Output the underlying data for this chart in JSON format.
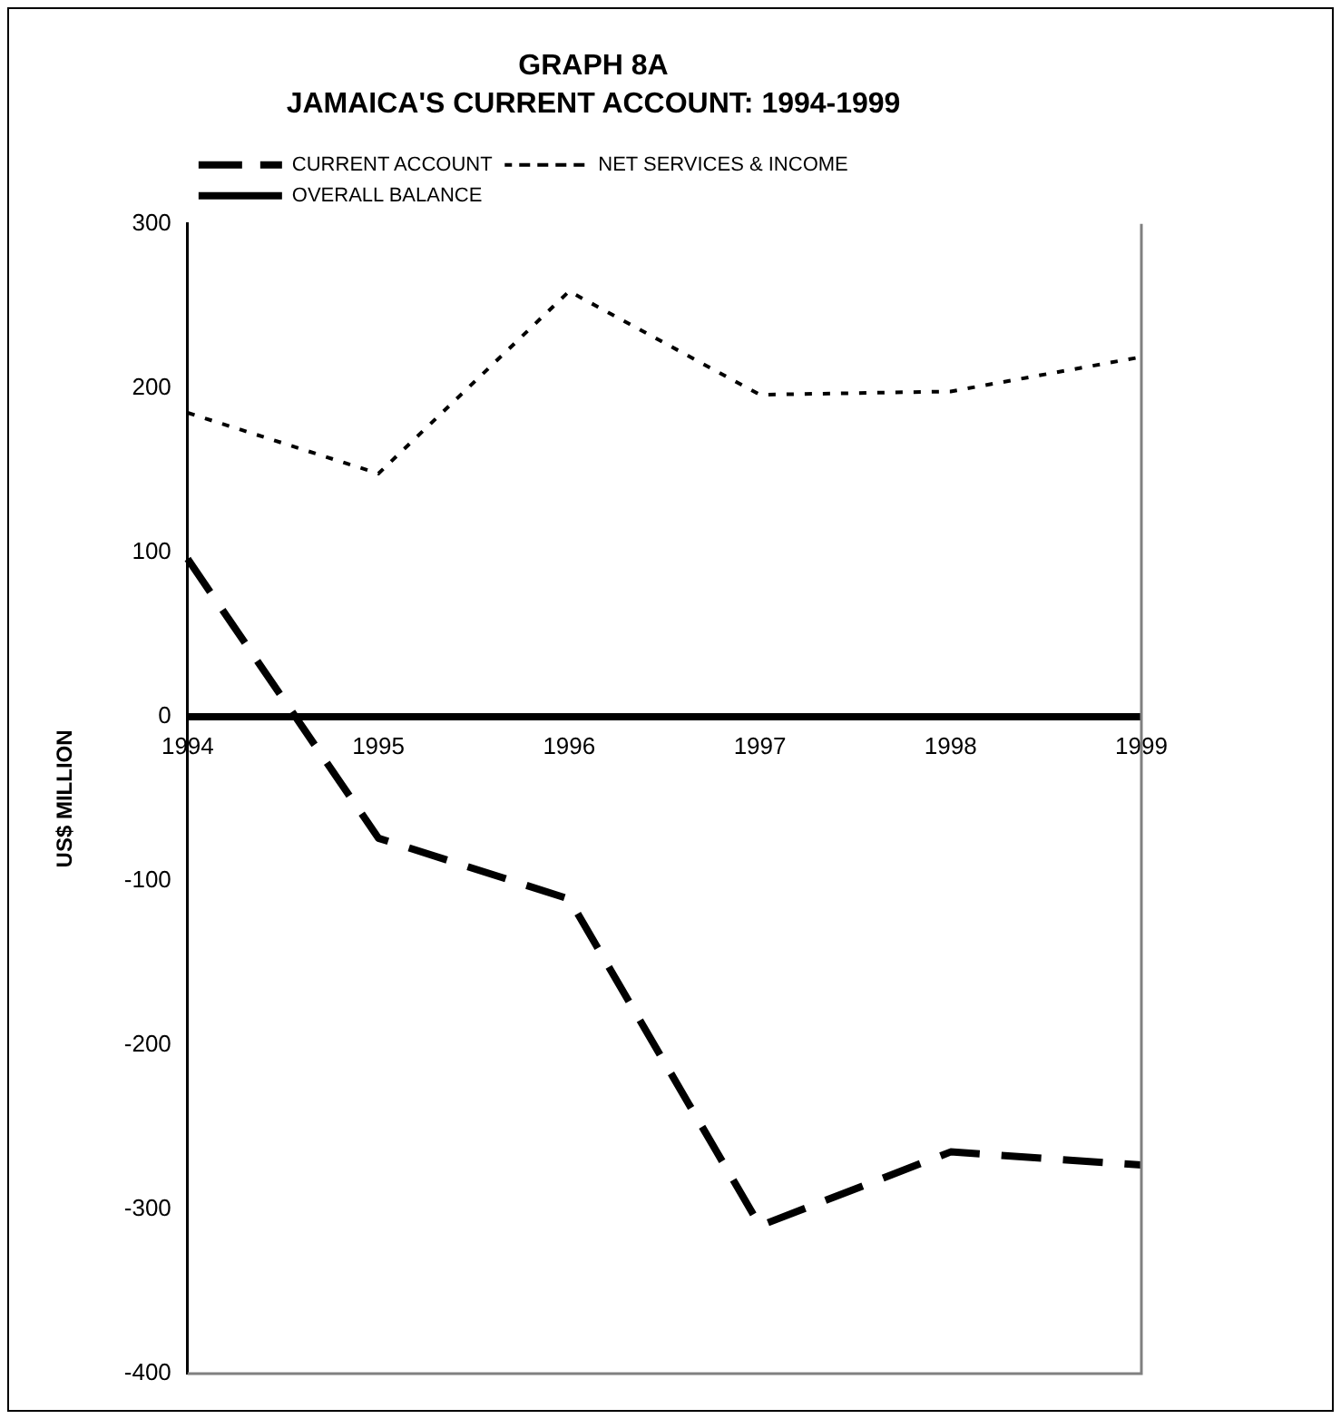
{
  "chart_data": {
    "type": "line",
    "title": "GRAPH 8A",
    "subtitle": "JAMAICA'S CURRENT ACCOUNT: 1994-1999",
    "ylabel": "US$ MILLION",
    "categories": [
      "1994",
      "1995",
      "1996",
      "1997",
      "1998",
      "1999"
    ],
    "series": [
      {
        "name": "CURRENT ACCOUNT",
        "color": "#000000",
        "line_style": "dashed",
        "values": [
          96,
          -74,
          -111,
          -310,
          -265,
          -273
        ]
      },
      {
        "name": "NET SERVICES & INCOME",
        "color": "#000000",
        "line_style": "dotted",
        "values": [
          185,
          148,
          259,
          196,
          198,
          219
        ]
      },
      {
        "name": "OVERALL BALANCE",
        "color": "#000000",
        "line_style": "solid",
        "values": [
          0,
          0,
          0,
          0,
          0,
          0
        ]
      }
    ],
    "ylim": [
      -400,
      300
    ],
    "yticks": [
      -400,
      -300,
      -200,
      -100,
      0,
      100,
      200,
      300
    ],
    "grid": false,
    "legend": "top left",
    "marker": "none"
  }
}
